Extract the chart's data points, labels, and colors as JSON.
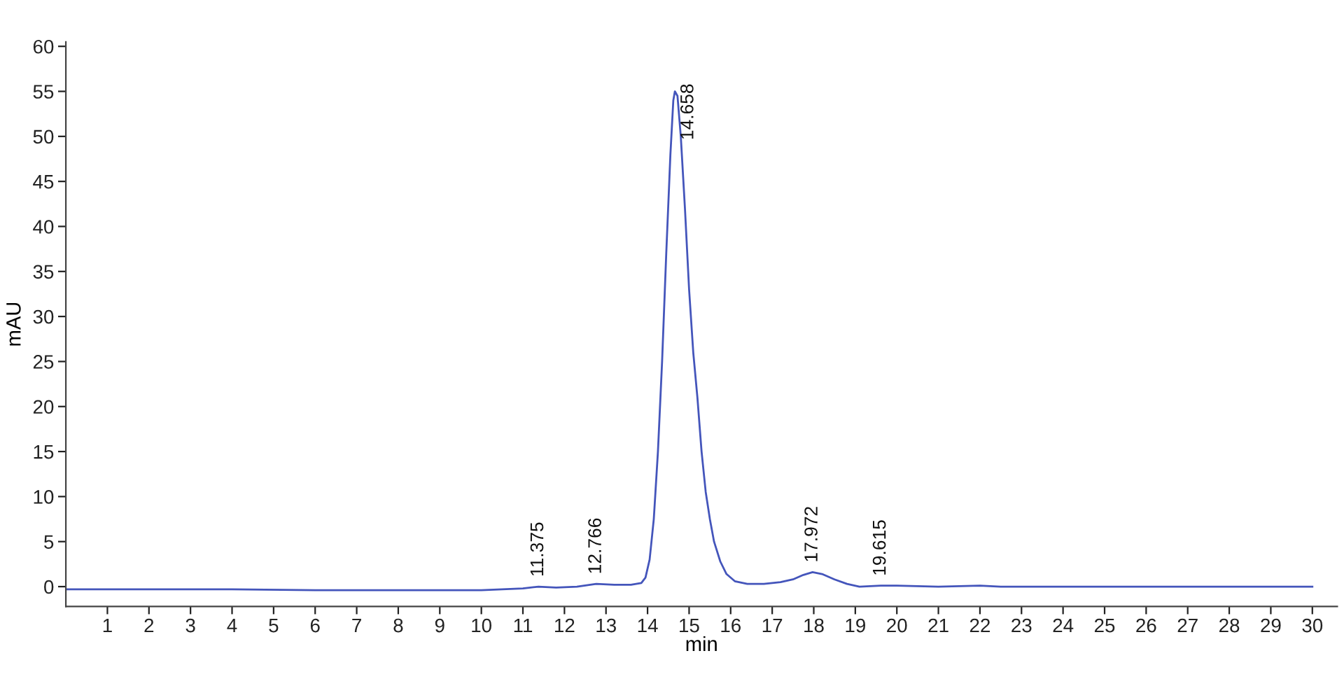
{
  "chart_data": {
    "type": "line",
    "xlabel": "min",
    "ylabel": "mAU",
    "x": [
      0,
      2,
      4,
      6,
      8,
      10,
      11.0,
      11.375,
      11.8,
      12.3,
      12.766,
      13.2,
      13.6,
      13.85,
      13.95,
      14.05,
      14.15,
      14.25,
      14.35,
      14.45,
      14.55,
      14.62,
      14.658,
      14.72,
      14.8,
      14.9,
      15.0,
      15.1,
      15.2,
      15.3,
      15.4,
      15.5,
      15.6,
      15.75,
      15.9,
      16.1,
      16.4,
      16.8,
      17.2,
      17.5,
      17.75,
      17.972,
      18.2,
      18.5,
      18.8,
      19.1,
      19.615,
      20.0,
      21.0,
      22.0,
      22.5,
      25,
      28,
      30
    ],
    "series": [
      {
        "color": "#4455bb",
        "values": [
          -0.3,
          -0.3,
          -0.3,
          -0.4,
          -0.4,
          -0.4,
          -0.2,
          0.0,
          -0.1,
          0.0,
          0.3,
          0.2,
          0.2,
          0.4,
          1.0,
          3.0,
          7.5,
          15,
          25,
          37,
          48,
          54,
          55,
          54.5,
          50,
          42,
          33,
          26,
          21,
          15,
          10.5,
          7.5,
          5,
          2.8,
          1.4,
          0.6,
          0.3,
          0.3,
          0.5,
          0.8,
          1.3,
          1.6,
          1.4,
          0.8,
          0.3,
          0.0,
          0.1,
          0.1,
          0.0,
          0.1,
          0.0,
          0.0,
          0.0,
          0.0
        ]
      }
    ],
    "line_style": "solid",
    "xlim": [
      0,
      30.6
    ],
    "ylim": [
      -2.2,
      60.5
    ],
    "xticks": [
      1,
      2,
      3,
      4,
      5,
      6,
      7,
      8,
      9,
      10,
      11,
      12,
      13,
      14,
      15,
      16,
      17,
      18,
      19,
      20,
      21,
      22,
      23,
      24,
      25,
      26,
      27,
      28,
      29,
      30
    ],
    "yticks": [
      0,
      5,
      10,
      15,
      20,
      25,
      30,
      35,
      40,
      45,
      50,
      55,
      60
    ],
    "grid": false,
    "annotations": [
      {
        "text": "11.375",
        "x": 11.375,
        "y": 0.0
      },
      {
        "text": "12.766",
        "x": 12.766,
        "y": 0.3
      },
      {
        "text": "14.658",
        "x": 14.658,
        "y": 55
      },
      {
        "text": "17.972",
        "x": 17.972,
        "y": 1.6
      },
      {
        "text": "19.615",
        "x": 19.615,
        "y": 0.1
      }
    ]
  }
}
